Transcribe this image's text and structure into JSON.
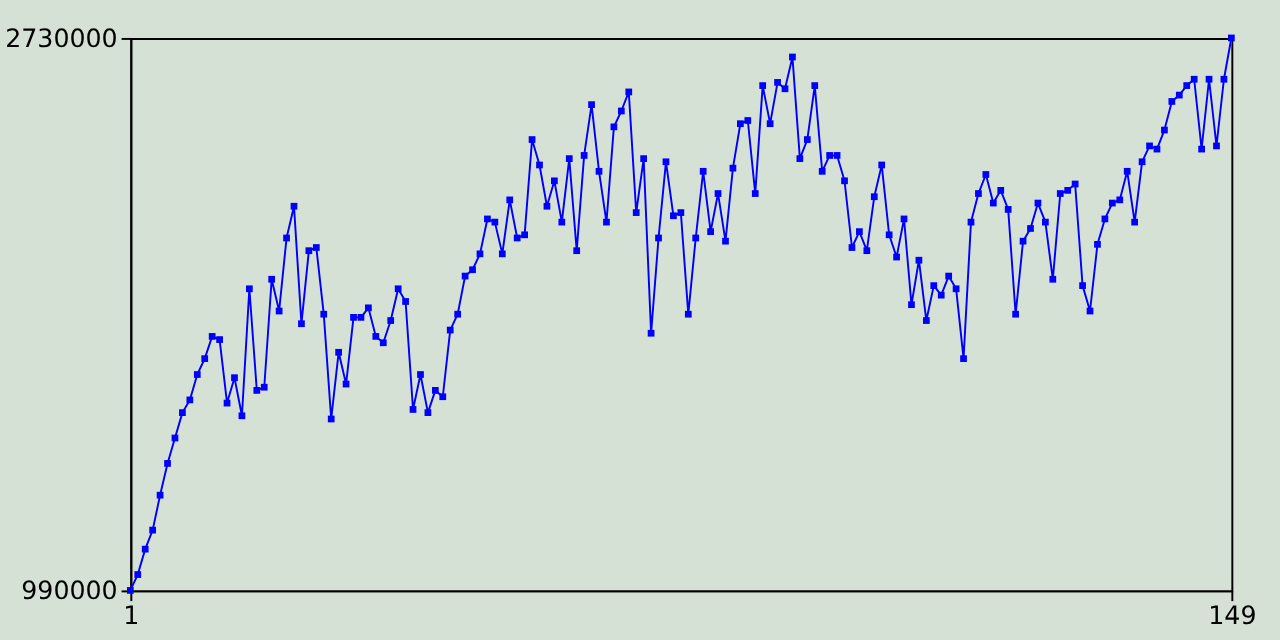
{
  "chart_data": {
    "type": "line",
    "marker": "square",
    "line_style": "solid",
    "grid": false,
    "x": [
      1,
      2,
      3,
      4,
      5,
      6,
      7,
      8,
      9,
      10,
      11,
      12,
      13,
      14,
      15,
      16,
      17,
      18,
      19,
      20,
      21,
      22,
      23,
      24,
      25,
      26,
      27,
      28,
      29,
      30,
      31,
      32,
      33,
      34,
      35,
      36,
      37,
      38,
      39,
      40,
      41,
      42,
      43,
      44,
      45,
      46,
      47,
      48,
      49,
      50,
      51,
      52,
      53,
      54,
      55,
      56,
      57,
      58,
      59,
      60,
      61,
      62,
      63,
      64,
      65,
      66,
      67,
      68,
      69,
      70,
      71,
      72,
      73,
      74,
      75,
      76,
      77,
      78,
      79,
      80,
      81,
      82,
      83,
      84,
      85,
      86,
      87,
      88,
      89,
      90,
      91,
      92,
      93,
      94,
      95,
      96,
      97,
      98,
      99,
      100,
      101,
      102,
      103,
      104,
      105,
      106,
      107,
      108,
      109,
      110,
      111,
      112,
      113,
      114,
      115,
      116,
      117,
      118,
      119,
      120,
      121,
      122,
      123,
      124,
      125,
      126,
      127,
      128,
      129,
      130,
      131,
      132,
      133,
      134,
      135,
      136,
      137,
      138,
      139,
      140,
      141,
      142,
      143,
      144,
      145,
      146,
      147,
      148,
      149
    ],
    "series": [
      {
        "color": "#0000ff",
        "values": [
          990000,
          1040000,
          1120000,
          1180000,
          1290000,
          1390000,
          1470000,
          1550000,
          1590000,
          1670000,
          1720000,
          1790000,
          1780000,
          1580000,
          1660000,
          1540000,
          1940000,
          1620000,
          1630000,
          1970000,
          1870000,
          2100000,
          2200000,
          1830000,
          2060000,
          2070000,
          1860000,
          1530000,
          1740000,
          1640000,
          1850000,
          1850000,
          1880000,
          1790000,
          1770000,
          1840000,
          1940000,
          1900000,
          1560000,
          1670000,
          1550000,
          1620000,
          1600000,
          1810000,
          1860000,
          1980000,
          2000000,
          2050000,
          2160000,
          2150000,
          2050000,
          2220000,
          2100000,
          2110000,
          2410000,
          2330000,
          2200000,
          2280000,
          2150000,
          2350000,
          2060000,
          2360000,
          2520000,
          2310000,
          2150000,
          2450000,
          2500000,
          2560000,
          2180000,
          2350000,
          1800000,
          2100000,
          2340000,
          2170000,
          2180000,
          1860000,
          2100000,
          2310000,
          2120000,
          2240000,
          2090000,
          2320000,
          2460000,
          2470000,
          2240000,
          2580000,
          2460000,
          2590000,
          2570000,
          2670000,
          2350000,
          2410000,
          2580000,
          2310000,
          2360000,
          2360000,
          2280000,
          2070000,
          2120000,
          2060000,
          2230000,
          2330000,
          2110000,
          2040000,
          2160000,
          1890000,
          2030000,
          1840000,
          1950000,
          1920000,
          1980000,
          1940000,
          1720000,
          2150000,
          2240000,
          2300000,
          2210000,
          2250000,
          2190000,
          1860000,
          2090000,
          2130000,
          2210000,
          2150000,
          1970000,
          2240000,
          2250000,
          2270000,
          1950000,
          1870000,
          2080000,
          2160000,
          2210000,
          2220000,
          2310000,
          2150000,
          2340000,
          2390000,
          2380000,
          2440000,
          2530000,
          2550000,
          2580000,
          2600000,
          2380000,
          2600000,
          2390000,
          2600000,
          2730000
        ]
      }
    ],
    "xlim": [
      1,
      149
    ],
    "xticks": [
      1,
      149
    ],
    "ylim": [
      990000,
      2730000
    ],
    "yticks": [
      990000,
      2730000
    ]
  }
}
